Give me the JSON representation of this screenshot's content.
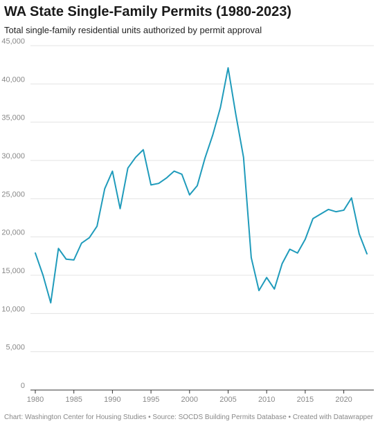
{
  "chart_data": {
    "type": "line",
    "title": "WA State Single-Family Permits (1980-2023)",
    "subtitle": "Total single-family residential units authorized by permit approval",
    "xlabel": "",
    "ylabel": "",
    "xlim": [
      1980,
      2023
    ],
    "ylim": [
      0,
      45000
    ],
    "grid": true,
    "y_ticks": [
      0,
      5000,
      10000,
      15000,
      20000,
      25000,
      30000,
      35000,
      40000,
      45000
    ],
    "y_tick_labels": [
      "0",
      "5,000",
      "10,000",
      "15,000",
      "20,000",
      "25,000",
      "30,000",
      "35,000",
      "40,000",
      "45,000"
    ],
    "x_ticks": [
      1980,
      1985,
      1990,
      1995,
      2000,
      2005,
      2010,
      2015,
      2020
    ],
    "x_tick_labels": [
      "1980",
      "1985",
      "1990",
      "1995",
      "2000",
      "2005",
      "2010",
      "2015",
      "2020"
    ],
    "line_color": "#1f9bbb",
    "x": [
      1980,
      1981,
      1982,
      1983,
      1984,
      1985,
      1986,
      1987,
      1988,
      1989,
      1990,
      1991,
      1992,
      1993,
      1994,
      1995,
      1996,
      1997,
      1998,
      1999,
      2000,
      2001,
      2002,
      2003,
      2004,
      2005,
      2006,
      2007,
      2008,
      2009,
      2010,
      2011,
      2012,
      2013,
      2014,
      2015,
      2016,
      2017,
      2018,
      2019,
      2020,
      2021,
      2022,
      2023
    ],
    "values": [
      17900,
      15000,
      11400,
      18500,
      17100,
      17000,
      19200,
      19900,
      21400,
      26300,
      28600,
      23700,
      29000,
      30400,
      31400,
      26800,
      27000,
      27700,
      28600,
      28200,
      25500,
      26700,
      30300,
      33300,
      36900,
      42100,
      36000,
      30400,
      17300,
      13000,
      14700,
      13200,
      16500,
      18400,
      17900,
      19700,
      22400,
      23000,
      23600,
      23300,
      23500,
      25100,
      20400,
      17800
    ]
  },
  "footer": "Chart: Washington Center for Housing Studies • Source: SOCDS Building Permits Database • Created with Datawrapper"
}
